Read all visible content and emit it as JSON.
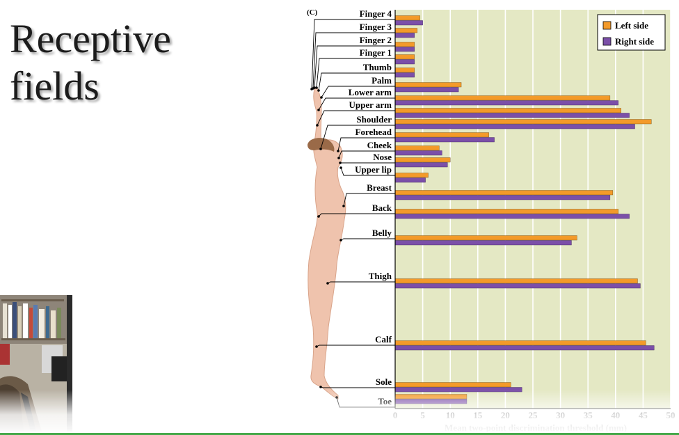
{
  "slide": {
    "title_line1": "Receptive",
    "title_line2": "fields"
  },
  "figure": {
    "panel_letter": "(C)"
  },
  "colors": {
    "left_side": "#f39a2a",
    "right_side": "#7b4fa8",
    "plot_background": "#e4e8c4",
    "grid": "#ffffff"
  },
  "chart_data": {
    "type": "bar",
    "orientation": "horizontal",
    "xlabel": "Mean two-point discrimination threshold (mm)",
    "xlim": [
      0,
      50
    ],
    "xticks": [
      0,
      5,
      10,
      15,
      20,
      25,
      30,
      35,
      40,
      45,
      50
    ],
    "grid": true,
    "legend": "top-right",
    "categories": [
      "Finger 4",
      "Finger 3",
      "Finger 2",
      "Finger 1",
      "Thumb",
      "Palm",
      "Lower arm",
      "Upper arm",
      "Shoulder",
      "Forehead",
      "Cheek",
      "Nose",
      "Upper lip",
      "Breast",
      "Back",
      "Belly",
      "Thigh",
      "Calf",
      "Sole",
      "Toe"
    ],
    "series": [
      {
        "name": "Left side",
        "values": [
          4.5,
          4.0,
          3.5,
          3.5,
          3.5,
          12.0,
          39.0,
          41.0,
          46.5,
          17.0,
          8.0,
          10.0,
          6.0,
          39.5,
          40.5,
          33.0,
          44.0,
          45.5,
          21.0,
          13.0
        ]
      },
      {
        "name": "Right side",
        "values": [
          5.0,
          3.5,
          3.5,
          3.5,
          3.5,
          11.5,
          40.5,
          42.5,
          43.5,
          18.0,
          8.5,
          9.5,
          5.5,
          39.0,
          42.5,
          32.0,
          44.5,
          47.0,
          23.0,
          13.0
        ]
      }
    ]
  }
}
